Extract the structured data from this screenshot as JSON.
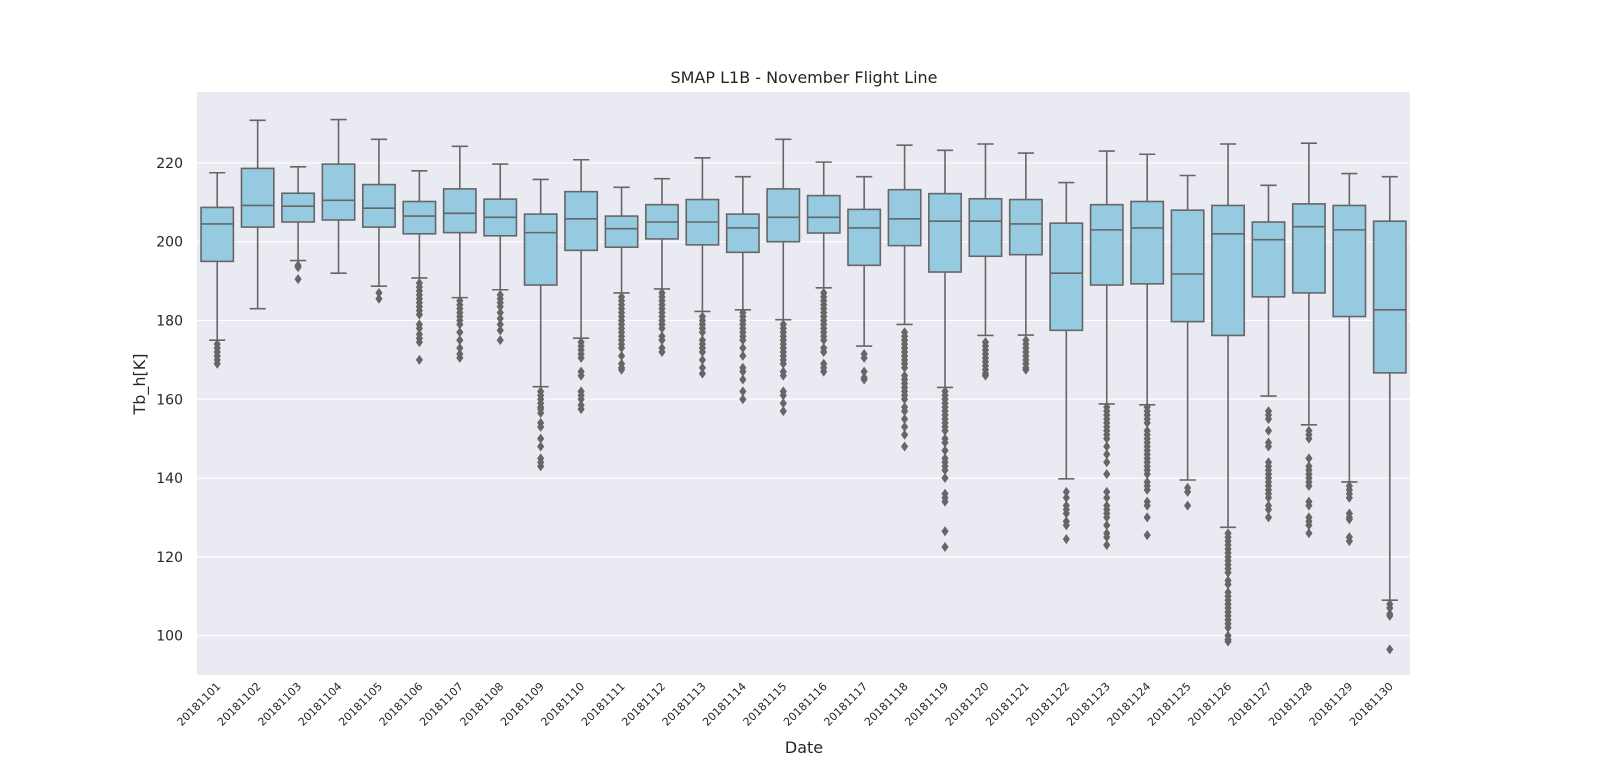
{
  "chart_data": {
    "type": "box",
    "title": "SMAP L1B - November Flight Line",
    "xlabel": "Date",
    "ylabel": "Tb_h[K]",
    "ylim": [
      90,
      238
    ],
    "yticks": [
      100,
      120,
      140,
      160,
      180,
      200,
      220
    ],
    "grid": true,
    "box_color": "#95cae0",
    "line_color": "#666666",
    "background_color": "#eaeaf2",
    "categories": [
      "20181101",
      "20181102",
      "20181103",
      "20181104",
      "20181105",
      "20181106",
      "20181107",
      "20181108",
      "20181109",
      "20181110",
      "20181111",
      "20181112",
      "20181113",
      "20181114",
      "20181115",
      "20181116",
      "20181117",
      "20181118",
      "20181119",
      "20181120",
      "20181121",
      "20181122",
      "20181123",
      "20181124",
      "20181125",
      "20181126",
      "20181127",
      "20181128",
      "20181129",
      "20181130"
    ],
    "boxes": [
      {
        "whislo": 175,
        "q1": 195,
        "med": 204.5,
        "q3": 208.7,
        "whishi": 217.5,
        "fliers": [
          174,
          173,
          172,
          171,
          170,
          169
        ]
      },
      {
        "whislo": 183,
        "q1": 203.7,
        "med": 209.2,
        "q3": 218.6,
        "whishi": 230.8,
        "fliers": []
      },
      {
        "whislo": 195.2,
        "q1": 205,
        "med": 209,
        "q3": 212.3,
        "whishi": 219,
        "fliers": [
          194,
          193.5,
          190.5
        ]
      },
      {
        "whislo": 192,
        "q1": 205.5,
        "med": 210.5,
        "q3": 219.7,
        "whishi": 231,
        "fliers": []
      },
      {
        "whislo": 188.7,
        "q1": 203.7,
        "med": 208.5,
        "q3": 214.5,
        "whishi": 226,
        "fliers": [
          187,
          185.5
        ]
      },
      {
        "whislo": 190.8,
        "q1": 202,
        "med": 206.5,
        "q3": 210.2,
        "whishi": 218,
        "fliers": [
          189.5,
          188.5,
          187.5,
          186.5,
          185.5,
          184.5,
          183.5,
          182.5,
          181.5,
          179,
          178,
          176.5,
          175.5,
          174.5,
          170
        ]
      },
      {
        "whislo": 185.8,
        "q1": 202.3,
        "med": 207.2,
        "q3": 213.4,
        "whishi": 224.2,
        "fliers": [
          185,
          184,
          183,
          182,
          181,
          180,
          179,
          177,
          175,
          173,
          171.5,
          170.5
        ]
      },
      {
        "whislo": 187.8,
        "q1": 201.5,
        "med": 206.2,
        "q3": 210.8,
        "whishi": 219.7,
        "fliers": [
          186.5,
          185.5,
          184.5,
          183.5,
          182,
          180.5,
          179,
          177.5,
          175
        ]
      },
      {
        "whislo": 163.2,
        "q1": 189,
        "med": 202.3,
        "q3": 207,
        "whishi": 215.8,
        "fliers": [
          162,
          161,
          160,
          159,
          158,
          157.5,
          156.5,
          154,
          153,
          150,
          148,
          145,
          144,
          143
        ]
      },
      {
        "whislo": 175.5,
        "q1": 197.8,
        "med": 205.8,
        "q3": 212.7,
        "whishi": 220.8,
        "fliers": [
          174.5,
          173.5,
          172.5,
          171.5,
          170.5,
          167,
          166,
          162,
          161,
          160,
          158.5,
          157.5
        ]
      },
      {
        "whislo": 187,
        "q1": 198.6,
        "med": 203.3,
        "q3": 206.5,
        "whishi": 213.8,
        "fliers": [
          186,
          185,
          184,
          183,
          182,
          181,
          180,
          179,
          178,
          177,
          176,
          175,
          174,
          173,
          171,
          169,
          168,
          167.5
        ]
      },
      {
        "whislo": 188,
        "q1": 200.7,
        "med": 205,
        "q3": 209.4,
        "whishi": 216,
        "fliers": [
          187,
          186,
          185,
          184,
          183,
          182,
          181,
          180,
          179,
          178,
          176,
          175,
          173,
          172
        ]
      },
      {
        "whislo": 182.3,
        "q1": 199.2,
        "med": 205,
        "q3": 210.7,
        "whishi": 221.3,
        "fliers": [
          181,
          180,
          179,
          178,
          177,
          175,
          174,
          173,
          172,
          170,
          168,
          166.5
        ]
      },
      {
        "whislo": 182.7,
        "q1": 197.3,
        "med": 203.5,
        "q3": 207,
        "whishi": 216.5,
        "fliers": [
          182,
          181,
          180,
          179,
          178,
          177,
          176,
          175,
          173,
          171,
          168,
          167,
          165,
          162,
          160
        ]
      },
      {
        "whislo": 180.2,
        "q1": 200,
        "med": 206.2,
        "q3": 213.4,
        "whishi": 226,
        "fliers": [
          179,
          178,
          177,
          176,
          175,
          174,
          173,
          172,
          171,
          170,
          169,
          167,
          166,
          162,
          161,
          159,
          157
        ]
      },
      {
        "whislo": 188.3,
        "q1": 202.2,
        "med": 206.2,
        "q3": 211.7,
        "whishi": 220.2,
        "fliers": [
          187,
          186,
          185,
          184,
          183,
          182,
          181,
          180,
          179,
          178,
          177,
          176,
          175,
          173,
          172,
          169,
          168,
          167
        ]
      },
      {
        "whislo": 173.5,
        "q1": 194,
        "med": 203.5,
        "q3": 208.2,
        "whishi": 216.5,
        "fliers": [
          171.5,
          170.5,
          167,
          165.5,
          165
        ]
      },
      {
        "whislo": 179,
        "q1": 199,
        "med": 205.8,
        "q3": 213.2,
        "whishi": 224.5,
        "fliers": [
          177,
          176,
          175,
          174,
          173,
          172,
          171,
          170,
          169,
          168,
          166,
          165,
          164,
          163,
          162,
          161,
          160,
          158,
          157,
          155,
          153,
          151,
          148
        ]
      },
      {
        "whislo": 163,
        "q1": 192.3,
        "med": 205.2,
        "q3": 212.2,
        "whishi": 223.2,
        "fliers": [
          162,
          161,
          160,
          159,
          158,
          157,
          156,
          155,
          154,
          153,
          152,
          150,
          149,
          147,
          145,
          144,
          143,
          142,
          140,
          136,
          135,
          134,
          126.5,
          122.5
        ]
      },
      {
        "whislo": 176.2,
        "q1": 196.3,
        "med": 205.2,
        "q3": 210.9,
        "whishi": 224.8,
        "fliers": [
          174.5,
          173.5,
          172.5,
          171.5,
          170.5,
          169.5,
          168.5,
          167.5,
          166.5,
          166
        ]
      },
      {
        "whislo": 176.3,
        "q1": 196.7,
        "med": 204.5,
        "q3": 210.7,
        "whishi": 222.5,
        "fliers": [
          175,
          174,
          173,
          172,
          171,
          170,
          169,
          168,
          167.5
        ]
      },
      {
        "whislo": 139.8,
        "q1": 177.5,
        "med": 192,
        "q3": 204.7,
        "whishi": 215,
        "fliers": [
          136.5,
          135,
          133,
          132,
          131,
          129,
          128,
          124.5
        ]
      },
      {
        "whislo": 158.8,
        "q1": 189,
        "med": 203,
        "q3": 209.4,
        "whishi": 223,
        "fliers": [
          158,
          157,
          156,
          155,
          154,
          153,
          152,
          151,
          150,
          148,
          146,
          144,
          141,
          136.5,
          135,
          133,
          132,
          131,
          130,
          128,
          126,
          125,
          123
        ]
      },
      {
        "whislo": 158.6,
        "q1": 189.3,
        "med": 203.5,
        "q3": 210.2,
        "whishi": 222.2,
        "fliers": [
          158,
          157,
          156,
          155,
          154,
          152,
          151,
          150,
          149,
          148,
          147,
          146,
          145,
          144,
          143,
          142,
          141,
          139,
          138,
          137,
          134,
          133,
          130,
          125.5
        ]
      },
      {
        "whislo": 139.5,
        "q1": 179.7,
        "med": 191.8,
        "q3": 208,
        "whishi": 216.8,
        "fliers": [
          137.5,
          136.5,
          133
        ]
      },
      {
        "whislo": 127.5,
        "q1": 176.2,
        "med": 202,
        "q3": 209.2,
        "whishi": 224.8,
        "fliers": [
          126,
          125,
          124,
          123,
          122,
          121,
          120,
          119,
          118,
          117,
          116,
          114,
          113,
          111,
          110,
          109,
          108,
          107,
          106,
          105,
          104,
          103,
          102,
          100,
          99,
          98.5
        ]
      },
      {
        "whislo": 160.8,
        "q1": 186,
        "med": 200.5,
        "q3": 205,
        "whishi": 214.3,
        "fliers": [
          157,
          156,
          155,
          152,
          149,
          148,
          144,
          143,
          142,
          141,
          140,
          139,
          138,
          137,
          136,
          135,
          133,
          132,
          130
        ]
      },
      {
        "whislo": 153.5,
        "q1": 187,
        "med": 203.8,
        "q3": 209.6,
        "whishi": 225,
        "fliers": [
          152,
          151,
          150,
          145,
          143,
          142,
          141,
          140,
          139,
          138,
          134,
          133,
          130,
          129,
          128,
          126
        ]
      },
      {
        "whislo": 139,
        "q1": 181,
        "med": 203,
        "q3": 209.2,
        "whishi": 217.3,
        "fliers": [
          138,
          137,
          136,
          135,
          131,
          130,
          129.5,
          125,
          124
        ]
      },
      {
        "whislo": 109,
        "q1": 166.7,
        "med": 182.7,
        "q3": 205.2,
        "whishi": 216.5,
        "fliers": [
          108,
          107,
          105.5,
          105,
          96.5
        ]
      }
    ]
  }
}
